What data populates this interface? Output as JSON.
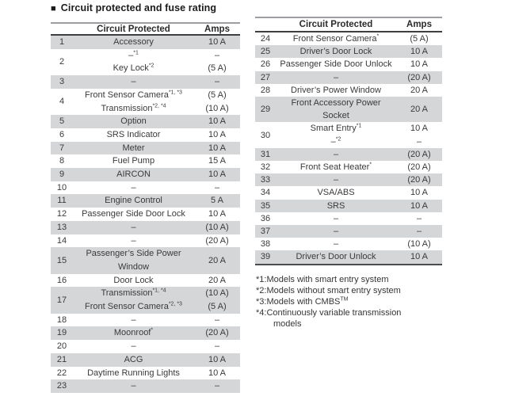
{
  "title": {
    "marker": "■",
    "text": "Circuit protected and fuse rating"
  },
  "columns": {
    "circuit": "Circuit Protected",
    "amps": "Amps"
  },
  "accent": {
    "stripe": "#d5d6d8",
    "rule_top": "#9b9da0",
    "rule_header": "#3d3f41",
    "rule_bottom": "#4a4d50",
    "text": "#3a3a3c"
  },
  "tables": [
    {
      "rows": [
        {
          "num": "1",
          "shaded": true,
          "lines": [
            {
              "c": "Accessory",
              "a": "10 A"
            }
          ]
        },
        {
          "num": "2",
          "shaded": false,
          "lines": [
            {
              "c": "–^{*1}",
              "a": "–"
            },
            {
              "c": "Key Lock^{*2}",
              "a": "(5 A)"
            }
          ]
        },
        {
          "num": "3",
          "shaded": true,
          "lines": [
            {
              "c": "–",
              "a": "–"
            }
          ]
        },
        {
          "num": "4",
          "shaded": false,
          "lines": [
            {
              "c": "Front Sensor Camera^{*1, *3}",
              "a": "(5 A)"
            },
            {
              "c": "Transmission^{*2, *4}",
              "a": "(10 A)"
            }
          ]
        },
        {
          "num": "5",
          "shaded": true,
          "lines": [
            {
              "c": "Option",
              "a": "10 A"
            }
          ]
        },
        {
          "num": "6",
          "shaded": false,
          "lines": [
            {
              "c": "SRS Indicator",
              "a": "10 A"
            }
          ]
        },
        {
          "num": "7",
          "shaded": true,
          "lines": [
            {
              "c": "Meter",
              "a": "10 A"
            }
          ]
        },
        {
          "num": "8",
          "shaded": false,
          "lines": [
            {
              "c": "Fuel Pump",
              "a": "15 A"
            }
          ]
        },
        {
          "num": "9",
          "shaded": true,
          "lines": [
            {
              "c": "AIRCON",
              "a": "10 A"
            }
          ]
        },
        {
          "num": "10",
          "shaded": false,
          "lines": [
            {
              "c": "–",
              "a": "–"
            }
          ]
        },
        {
          "num": "11",
          "shaded": true,
          "lines": [
            {
              "c": "Engine Control",
              "a": "5 A"
            }
          ]
        },
        {
          "num": "12",
          "shaded": false,
          "lines": [
            {
              "c": "Passenger Side Door Lock",
              "a": "10 A"
            }
          ]
        },
        {
          "num": "13",
          "shaded": true,
          "lines": [
            {
              "c": "–",
              "a": "(10 A)"
            }
          ]
        },
        {
          "num": "14",
          "shaded": false,
          "lines": [
            {
              "c": "–",
              "a": "(20 A)"
            }
          ]
        },
        {
          "num": "15",
          "shaded": true,
          "lines": [
            {
              "c": "Passenger’s Side Power\nWindow",
              "a": "20 A"
            }
          ]
        },
        {
          "num": "16",
          "shaded": false,
          "lines": [
            {
              "c": "Door Lock",
              "a": "20 A"
            }
          ]
        },
        {
          "num": "17",
          "shaded": true,
          "lines": [
            {
              "c": "Transmission^{*1, *4}",
              "a": "(10 A)"
            },
            {
              "c": "Front Sensor Camera^{*2, *3}",
              "a": "(5 A)"
            }
          ]
        },
        {
          "num": "18",
          "shaded": false,
          "lines": [
            {
              "c": "–",
              "a": "–"
            }
          ]
        },
        {
          "num": "19",
          "shaded": true,
          "lines": [
            {
              "c": "Moonroof^{*}",
              "a": "(20 A)"
            }
          ]
        },
        {
          "num": "20",
          "shaded": false,
          "lines": [
            {
              "c": "–",
              "a": "–"
            }
          ]
        },
        {
          "num": "21",
          "shaded": true,
          "lines": [
            {
              "c": "ACG",
              "a": "10 A"
            }
          ]
        },
        {
          "num": "22",
          "shaded": false,
          "lines": [
            {
              "c": "Daytime Running Lights",
              "a": "10 A"
            }
          ]
        },
        {
          "num": "23",
          "shaded": true,
          "lines": [
            {
              "c": "–",
              "a": "–"
            }
          ]
        }
      ]
    },
    {
      "rows": [
        {
          "num": "24",
          "shaded": false,
          "lines": [
            {
              "c": "Front Sensor Camera^{*}",
              "a": "(5 A)"
            }
          ]
        },
        {
          "num": "25",
          "shaded": true,
          "lines": [
            {
              "c": "Driver’s Door Lock",
              "a": "10 A"
            }
          ]
        },
        {
          "num": "26",
          "shaded": false,
          "lines": [
            {
              "c": "Passenger Side Door Unlock",
              "a": "10 A"
            }
          ]
        },
        {
          "num": "27",
          "shaded": true,
          "lines": [
            {
              "c": "–",
              "a": "(20 A)"
            }
          ]
        },
        {
          "num": "28",
          "shaded": false,
          "lines": [
            {
              "c": "Driver’s Power Window",
              "a": "20 A"
            }
          ]
        },
        {
          "num": "29",
          "shaded": true,
          "lines": [
            {
              "c": "Front Accessory Power\nSocket",
              "a": "20 A"
            }
          ]
        },
        {
          "num": "30",
          "shaded": false,
          "lines": [
            {
              "c": "Smart Entry^{*1}",
              "a": "10 A"
            },
            {
              "c": "–^{*2}",
              "a": "–"
            }
          ]
        },
        {
          "num": "31",
          "shaded": true,
          "lines": [
            {
              "c": "–",
              "a": "(20 A)"
            }
          ]
        },
        {
          "num": "32",
          "shaded": false,
          "lines": [
            {
              "c": "Front Seat Heater^{*}",
              "a": "(20 A)"
            }
          ]
        },
        {
          "num": "33",
          "shaded": true,
          "lines": [
            {
              "c": "–",
              "a": "(20 A)"
            }
          ]
        },
        {
          "num": "34",
          "shaded": false,
          "lines": [
            {
              "c": "VSA/ABS",
              "a": "10 A"
            }
          ]
        },
        {
          "num": "35",
          "shaded": true,
          "lines": [
            {
              "c": "SRS",
              "a": "10 A"
            }
          ]
        },
        {
          "num": "36",
          "shaded": false,
          "lines": [
            {
              "c": "–",
              "a": "–"
            }
          ]
        },
        {
          "num": "37",
          "shaded": true,
          "lines": [
            {
              "c": "–",
              "a": "–"
            }
          ]
        },
        {
          "num": "38",
          "shaded": false,
          "lines": [
            {
              "c": "–",
              "a": "(10 A)"
            }
          ]
        },
        {
          "num": "39",
          "shaded": true,
          "lines": [
            {
              "c": "Driver’s Door Unlock",
              "a": "10 A"
            }
          ]
        }
      ]
    }
  ],
  "footnotes": [
    "*1:Models with smart entry system",
    "*2:Models without smart entry system",
    "*3:Models with CMBS^{TM}",
    "*4:Continuously variable transmission\nmodels"
  ]
}
